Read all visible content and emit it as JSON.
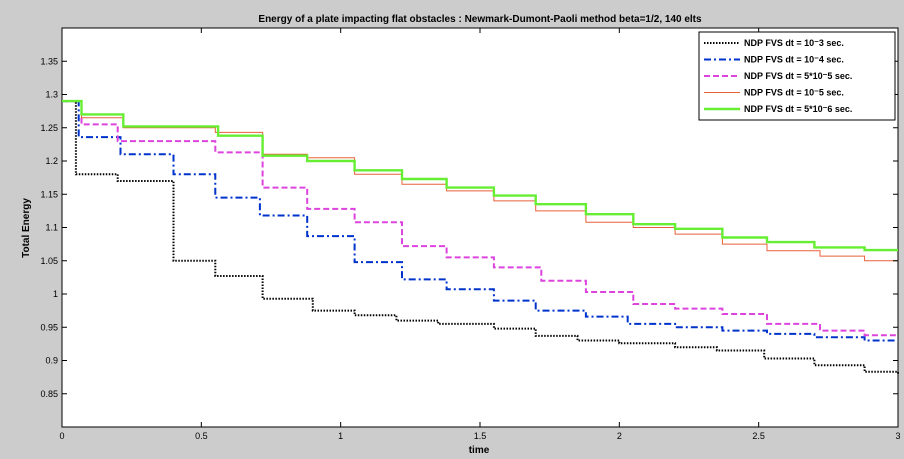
{
  "chart_data": {
    "type": "line",
    "title": "Energy of a plate impacting flat obstacles : Newmark-Dumont-Paoli method beta=1/2, 140 elts",
    "xlabel": "time",
    "ylabel": "Total Energy",
    "xlim": [
      0,
      3
    ],
    "ylim": [
      0.8,
      1.4
    ],
    "x_ticks": [
      0,
      0.5,
      1,
      1.5,
      2,
      2.5,
      3
    ],
    "x_tick_labels": [
      "0",
      "0.5",
      "1",
      "1.5",
      "2",
      "2.5",
      "3"
    ],
    "y_ticks": [
      0.85,
      0.9,
      0.95,
      1,
      1.05,
      1.1,
      1.15,
      1.2,
      1.25,
      1.3,
      1.35
    ],
    "y_tick_labels": [
      "0.85",
      "0.9",
      "0.95",
      "1",
      "1.05",
      "1.1",
      "1.15",
      "1.2",
      "1.25",
      "1.3",
      "1.35"
    ],
    "grid": false,
    "legend_position": "top-right",
    "series": [
      {
        "name": "NDP FVS dt = 10⁻3 sec.",
        "color": "#000000",
        "dash": "dotted",
        "steps": [
          [
            0,
            1.29
          ],
          [
            0.05,
            1.18
          ],
          [
            0.2,
            1.17
          ],
          [
            0.4,
            1.05
          ],
          [
            0.55,
            1.027
          ],
          [
            0.72,
            0.993
          ],
          [
            0.9,
            0.975
          ],
          [
            1.05,
            0.968
          ],
          [
            1.2,
            0.96
          ],
          [
            1.35,
            0.955
          ],
          [
            1.55,
            0.948
          ],
          [
            1.7,
            0.937
          ],
          [
            1.85,
            0.93
          ],
          [
            2.0,
            0.926
          ],
          [
            2.2,
            0.92
          ],
          [
            2.35,
            0.915
          ],
          [
            2.52,
            0.903
          ],
          [
            2.7,
            0.893
          ],
          [
            2.88,
            0.883
          ],
          [
            3.0,
            0.88
          ]
        ]
      },
      {
        "name": "NDP FVS dt = 10⁻4 sec.",
        "color": "#0033cc",
        "dash": "dashdot",
        "steps": [
          [
            0,
            1.29
          ],
          [
            0.06,
            1.236
          ],
          [
            0.21,
            1.21
          ],
          [
            0.4,
            1.18
          ],
          [
            0.55,
            1.145
          ],
          [
            0.71,
            1.118
          ],
          [
            0.88,
            1.087
          ],
          [
            1.05,
            1.048
          ],
          [
            1.22,
            1.022
          ],
          [
            1.38,
            1.007
          ],
          [
            1.55,
            0.99
          ],
          [
            1.7,
            0.975
          ],
          [
            1.88,
            0.966
          ],
          [
            2.03,
            0.955
          ],
          [
            2.2,
            0.95
          ],
          [
            2.37,
            0.945
          ],
          [
            2.53,
            0.94
          ],
          [
            2.7,
            0.935
          ],
          [
            2.88,
            0.93
          ],
          [
            3.0,
            0.93
          ]
        ]
      },
      {
        "name": "NDP FVS dt = 5*10⁻5 sec.",
        "color": "#dd44dd",
        "dash": "dashed",
        "steps": [
          [
            0,
            1.29
          ],
          [
            0.07,
            1.255
          ],
          [
            0.2,
            1.23
          ],
          [
            0.55,
            1.213
          ],
          [
            0.72,
            1.16
          ],
          [
            0.88,
            1.128
          ],
          [
            1.05,
            1.108
          ],
          [
            1.22,
            1.072
          ],
          [
            1.38,
            1.055
          ],
          [
            1.55,
            1.04
          ],
          [
            1.72,
            1.02
          ],
          [
            1.88,
            1.003
          ],
          [
            2.05,
            0.985
          ],
          [
            2.2,
            0.978
          ],
          [
            2.37,
            0.97
          ],
          [
            2.53,
            0.955
          ],
          [
            2.72,
            0.945
          ],
          [
            2.88,
            0.938
          ],
          [
            3.0,
            0.938
          ]
        ]
      },
      {
        "name": "NDP FVS dt = 10⁻5 sec.",
        "color": "#e8603a",
        "dash": "solid-thin",
        "steps": [
          [
            0,
            1.29
          ],
          [
            0.07,
            1.265
          ],
          [
            0.22,
            1.25
          ],
          [
            0.55,
            1.243
          ],
          [
            0.72,
            1.21
          ],
          [
            0.88,
            1.205
          ],
          [
            1.05,
            1.18
          ],
          [
            1.22,
            1.165
          ],
          [
            1.38,
            1.155
          ],
          [
            1.55,
            1.14
          ],
          [
            1.7,
            1.125
          ],
          [
            1.88,
            1.108
          ],
          [
            2.05,
            1.1
          ],
          [
            2.2,
            1.09
          ],
          [
            2.37,
            1.075
          ],
          [
            2.53,
            1.065
          ],
          [
            2.72,
            1.057
          ],
          [
            2.88,
            1.05
          ],
          [
            3.0,
            1.05
          ]
        ]
      },
      {
        "name": "NDP FVS dt = 5*10⁻6 sec.",
        "color": "#66ee33",
        "dash": "solid-thick",
        "steps": [
          [
            0,
            1.29
          ],
          [
            0.07,
            1.27
          ],
          [
            0.22,
            1.252
          ],
          [
            0.56,
            1.238
          ],
          [
            0.72,
            1.208
          ],
          [
            0.88,
            1.2
          ],
          [
            1.05,
            1.186
          ],
          [
            1.22,
            1.173
          ],
          [
            1.38,
            1.16
          ],
          [
            1.55,
            1.148
          ],
          [
            1.7,
            1.135
          ],
          [
            1.88,
            1.12
          ],
          [
            2.05,
            1.105
          ],
          [
            2.2,
            1.098
          ],
          [
            2.37,
            1.085
          ],
          [
            2.53,
            1.078
          ],
          [
            2.7,
            1.07
          ],
          [
            2.88,
            1.066
          ],
          [
            3.0,
            1.066
          ]
        ]
      }
    ]
  }
}
